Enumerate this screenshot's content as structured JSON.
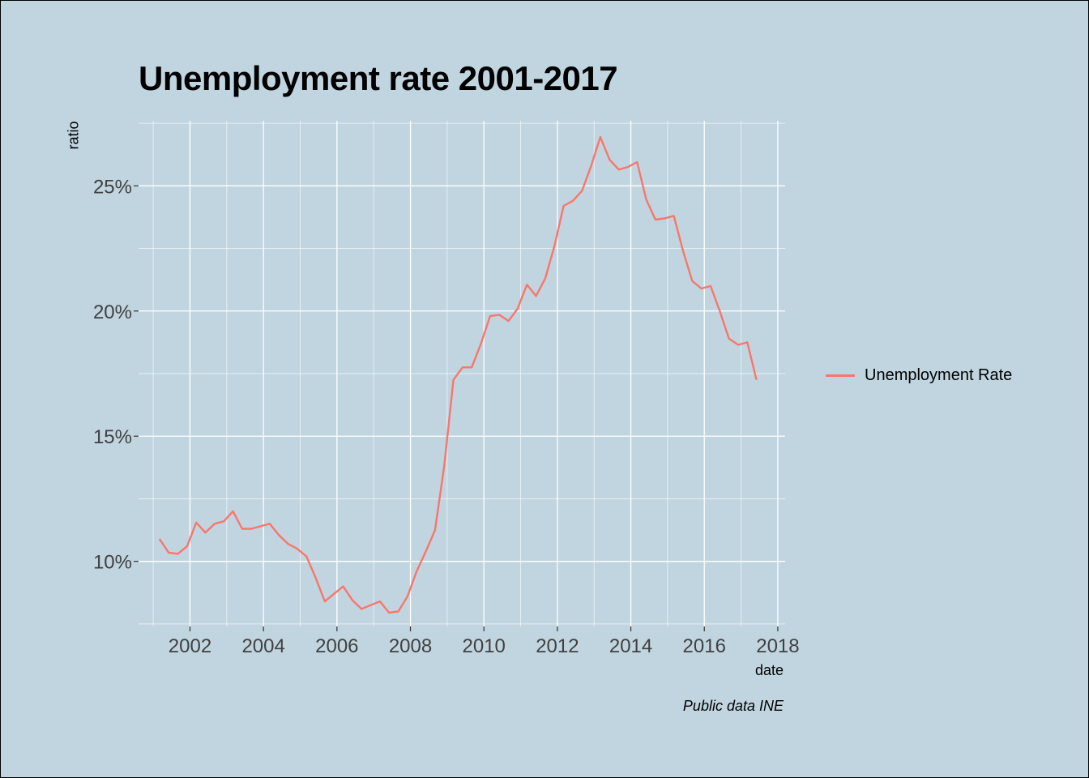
{
  "chart_data": {
    "type": "line",
    "title": "Unemployment rate 2001-2017",
    "xlabel": "date",
    "ylabel": "ratio",
    "caption": "Public data INE",
    "legend": {
      "position": "right",
      "entries": [
        "Unemployment Rate"
      ]
    },
    "grid": true,
    "colors": {
      "series": "#f8766d",
      "background": "#c1d5e0",
      "grid": "#ffffff"
    },
    "xlim": [
      2000.6,
      2018.2
    ],
    "ylim": [
      7.4,
      27.6
    ],
    "x_ticks": [
      2002,
      2004,
      2006,
      2008,
      2010,
      2012,
      2014,
      2016,
      2018
    ],
    "x_tick_labels": [
      "2002",
      "2004",
      "2006",
      "2008",
      "2010",
      "2012",
      "2014",
      "2016",
      "2018"
    ],
    "y_ticks": [
      10,
      15,
      20,
      25
    ],
    "y_tick_labels": [
      "10%",
      "15%",
      "20%",
      "25%"
    ],
    "series": [
      {
        "name": "Unemployment Rate",
        "x": [
          2001.17,
          2001.42,
          2001.67,
          2001.92,
          2002.17,
          2002.42,
          2002.67,
          2002.92,
          2003.17,
          2003.42,
          2003.67,
          2003.92,
          2004.17,
          2004.42,
          2004.67,
          2004.92,
          2005.17,
          2005.42,
          2005.67,
          2005.92,
          2006.17,
          2006.42,
          2006.67,
          2006.92,
          2007.17,
          2007.42,
          2007.67,
          2007.92,
          2008.17,
          2008.42,
          2008.67,
          2008.92,
          2009.17,
          2009.42,
          2009.67,
          2009.92,
          2010.17,
          2010.42,
          2010.67,
          2010.92,
          2011.17,
          2011.42,
          2011.67,
          2011.92,
          2012.17,
          2012.42,
          2012.67,
          2012.92,
          2013.17,
          2013.42,
          2013.67,
          2013.92,
          2014.17,
          2014.42,
          2014.67,
          2014.92,
          2015.17,
          2015.42,
          2015.67,
          2015.92,
          2016.17,
          2016.42,
          2016.67,
          2016.92,
          2017.17,
          2017.42
        ],
        "values": [
          10.9,
          10.35,
          10.3,
          10.6,
          11.55,
          11.15,
          11.5,
          11.6,
          12.0,
          11.3,
          11.3,
          11.4,
          11.5,
          11.05,
          10.7,
          10.5,
          10.2,
          9.35,
          8.4,
          8.7,
          9.0,
          8.45,
          8.1,
          8.25,
          8.4,
          7.95,
          8.0,
          8.6,
          9.6,
          10.4,
          11.25,
          13.8,
          17.25,
          17.75,
          17.75,
          18.7,
          19.8,
          19.85,
          19.6,
          20.1,
          21.05,
          20.6,
          21.3,
          22.6,
          24.2,
          24.4,
          24.8,
          25.8,
          26.95,
          26.05,
          25.65,
          25.75,
          25.95,
          24.45,
          23.65,
          23.7,
          23.8,
          22.4,
          21.2,
          20.9,
          21.0,
          20.0,
          18.9,
          18.65,
          18.75,
          17.25
        ]
      }
    ]
  }
}
